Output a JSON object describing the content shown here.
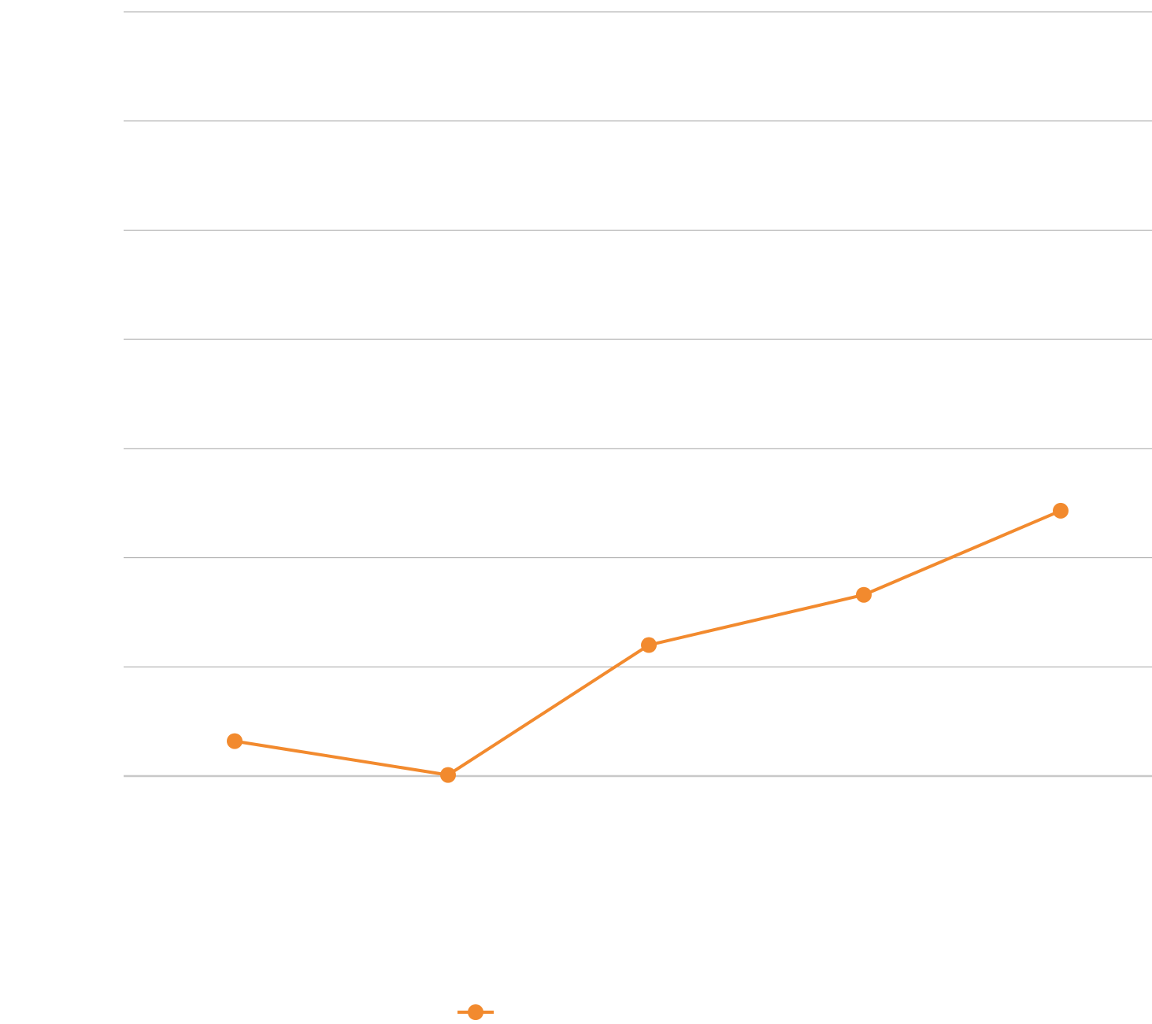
{
  "chart_data": {
    "type": "line",
    "title": "",
    "xlabel": "",
    "ylabel": "",
    "categories": [
      "",
      "",
      "",
      "",
      ""
    ],
    "x": [
      1,
      2,
      3,
      4,
      5
    ],
    "series": [
      {
        "name": "",
        "color": "#f28a2e",
        "values": [
          0.32,
          0.01,
          1.2,
          1.66,
          2.43
        ]
      }
    ],
    "ylim": [
      0,
      7
    ],
    "yticks": [
      0,
      1,
      2,
      3,
      4,
      5,
      6,
      7
    ],
    "ytick_labels": [
      "",
      "",
      "",
      "",
      "",
      "",
      "",
      ""
    ],
    "grid": true,
    "gridline_color": "#a6a6a6",
    "baseline_color": "#c8c8c8",
    "legend": {
      "position": "bottom",
      "entries": [
        ""
      ]
    }
  }
}
